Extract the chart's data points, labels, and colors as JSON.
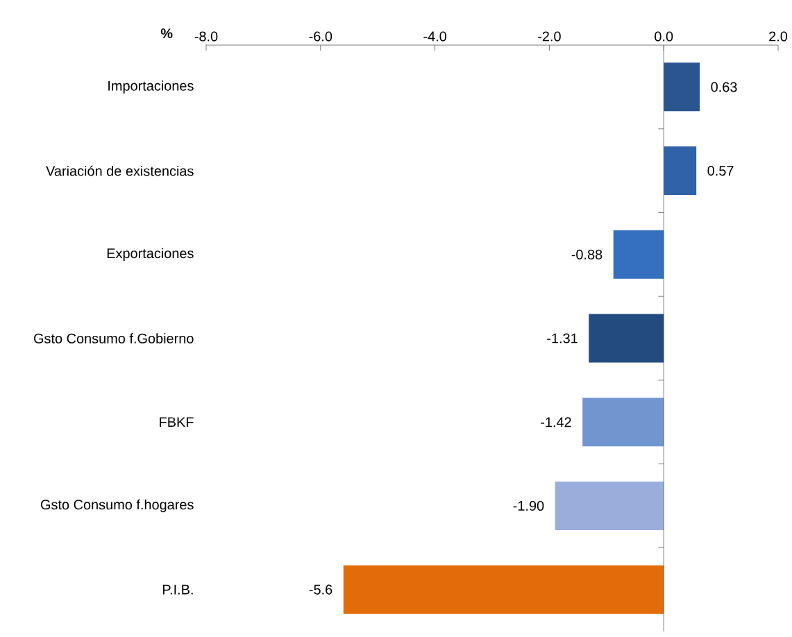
{
  "chart_data": {
    "type": "bar",
    "orientation": "horizontal",
    "ylabel": "%",
    "categories": [
      "Importaciones",
      "Variación de existencias",
      "Exportaciones",
      "Gsto Consumo f.Gobierno",
      "FBKF",
      "Gsto Consumo f.hogares",
      "P.I.B."
    ],
    "values": [
      0.63,
      0.57,
      -0.88,
      -1.31,
      -1.42,
      -1.9,
      -5.6
    ],
    "value_labels": [
      "0.63",
      "0.57",
      "-0.88",
      "-1.31",
      "-1.42",
      "-1.90",
      "-5.6"
    ],
    "colors": [
      "#2a5590",
      "#2f62a8",
      "#3570bf",
      "#234b80",
      "#7095cf",
      "#9aaedb",
      "#e36c0a"
    ],
    "xlim": [
      -8,
      2
    ],
    "xticks": [
      {
        "value": -8,
        "label": "-8.0"
      },
      {
        "value": -6,
        "label": "-6.0"
      },
      {
        "value": -4,
        "label": "-4.0"
      },
      {
        "value": -2,
        "label": "-2.0"
      },
      {
        "value": 0,
        "label": "0.0"
      },
      {
        "value": 2,
        "label": "2.0"
      }
    ]
  }
}
